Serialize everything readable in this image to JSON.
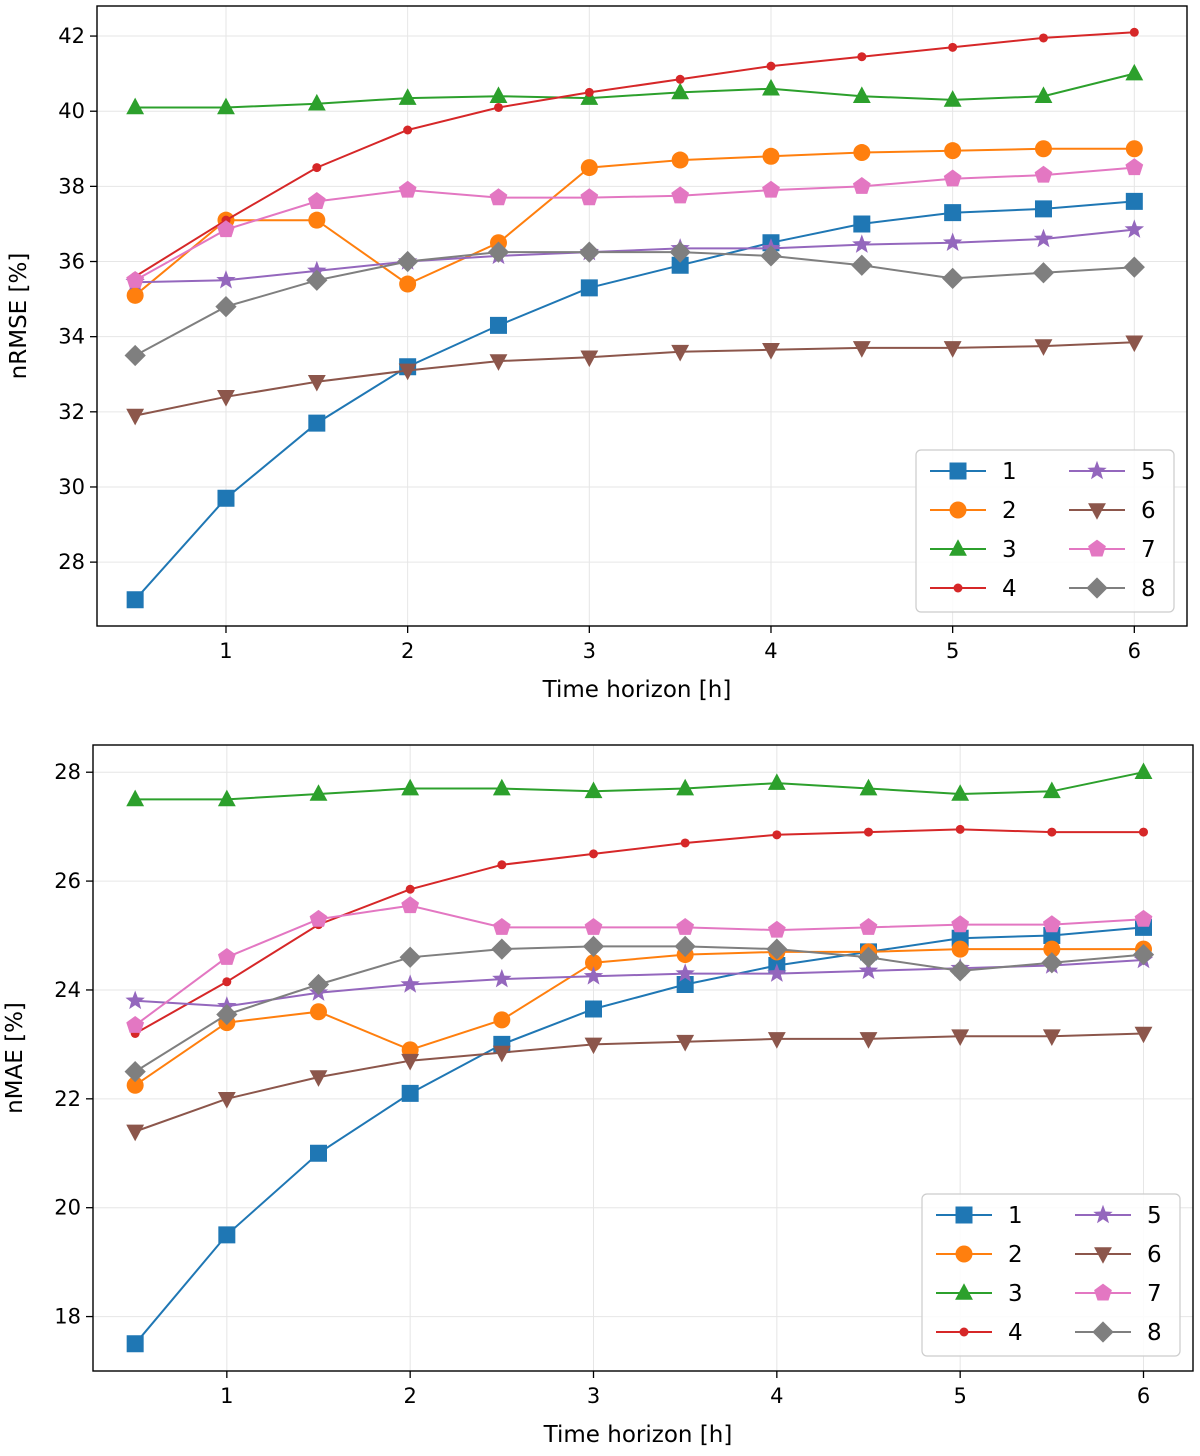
{
  "chart_data": [
    {
      "type": "line",
      "title": "",
      "xlabel": "Time horizon [h]",
      "ylabel": "nRMSE [%]",
      "xlim": [
        0.29,
        6.29
      ],
      "ylim": [
        26.3,
        42.8
      ],
      "xticks": [
        1,
        2,
        3,
        4,
        5,
        6
      ],
      "xtick_labels": [
        "1",
        "2",
        "3",
        "4",
        "5",
        "6"
      ],
      "yticks": [
        28,
        30,
        32,
        34,
        36,
        38,
        40,
        42
      ],
      "ytick_labels": [
        "28",
        "30",
        "32",
        "34",
        "36",
        "38",
        "40",
        "42"
      ],
      "grid": true,
      "legend_position": "lower-right",
      "legend_columns": 2,
      "x": [
        0.5,
        1,
        1.5,
        2,
        2.5,
        3,
        3.5,
        4,
        4.5,
        5,
        5.5,
        6
      ],
      "series": [
        {
          "name": "1",
          "color": "#1f77b4",
          "marker": "square",
          "values": [
            27.0,
            29.7,
            31.7,
            33.2,
            34.3,
            35.3,
            35.9,
            36.5,
            37.0,
            37.3,
            37.4,
            37.6
          ]
        },
        {
          "name": "2",
          "color": "#ff7f0e",
          "marker": "circle",
          "values": [
            35.1,
            37.1,
            37.1,
            35.4,
            36.5,
            38.5,
            38.7,
            38.8,
            38.9,
            38.95,
            39.0,
            39.0
          ]
        },
        {
          "name": "3",
          "color": "#2ca02c",
          "marker": "triangle-up",
          "values": [
            40.1,
            40.1,
            40.2,
            40.35,
            40.4,
            40.35,
            40.5,
            40.6,
            40.4,
            40.3,
            40.4,
            41.0
          ]
        },
        {
          "name": "4",
          "color": "#d62728",
          "marker": "dot",
          "values": [
            35.6,
            37.1,
            38.5,
            39.5,
            40.1,
            40.5,
            40.85,
            41.2,
            41.45,
            41.7,
            41.95,
            42.1
          ]
        },
        {
          "name": "5",
          "color": "#9467bd",
          "marker": "star",
          "values": [
            35.45,
            35.5,
            35.75,
            36.0,
            36.15,
            36.25,
            36.35,
            36.35,
            36.45,
            36.5,
            36.6,
            36.85
          ]
        },
        {
          "name": "6",
          "color": "#8c564b",
          "marker": "triangle-down",
          "values": [
            31.9,
            32.4,
            32.8,
            33.1,
            33.35,
            33.45,
            33.6,
            33.65,
            33.7,
            33.7,
            33.75,
            33.85
          ]
        },
        {
          "name": "7",
          "color": "#e377c2",
          "marker": "pentagon",
          "values": [
            35.5,
            36.85,
            37.6,
            37.9,
            37.7,
            37.7,
            37.75,
            37.9,
            38.0,
            38.2,
            38.3,
            38.5
          ]
        },
        {
          "name": "8",
          "color": "#7f7f7f",
          "marker": "diamond",
          "values": [
            33.5,
            34.8,
            35.5,
            36.0,
            36.25,
            36.25,
            36.25,
            36.15,
            35.9,
            35.55,
            35.7,
            35.85
          ]
        }
      ]
    },
    {
      "type": "line",
      "title": "",
      "xlabel": "Time horizon [h]",
      "ylabel": "nMAE [%]",
      "xlim": [
        0.27,
        6.27
      ],
      "ylim": [
        17.0,
        28.5
      ],
      "xticks": [
        1,
        2,
        3,
        4,
        5,
        6
      ],
      "xtick_labels": [
        "1",
        "2",
        "3",
        "4",
        "5",
        "6"
      ],
      "yticks": [
        18,
        20,
        22,
        24,
        26,
        28
      ],
      "ytick_labels": [
        "18",
        "20",
        "22",
        "24",
        "26",
        "28"
      ],
      "grid": true,
      "legend_position": "lower-right",
      "legend_columns": 2,
      "x": [
        0.5,
        1,
        1.5,
        2,
        2.5,
        3,
        3.5,
        4,
        4.5,
        5,
        5.5,
        6
      ],
      "series": [
        {
          "name": "1",
          "color": "#1f77b4",
          "marker": "square",
          "values": [
            17.5,
            19.5,
            21.0,
            22.1,
            23.0,
            23.65,
            24.1,
            24.45,
            24.7,
            24.95,
            25.0,
            25.15
          ]
        },
        {
          "name": "2",
          "color": "#ff7f0e",
          "marker": "circle",
          "values": [
            22.25,
            23.4,
            23.6,
            22.9,
            23.45,
            24.5,
            24.65,
            24.7,
            24.7,
            24.75,
            24.75,
            24.75
          ]
        },
        {
          "name": "3",
          "color": "#2ca02c",
          "marker": "triangle-up",
          "values": [
            27.5,
            27.5,
            27.6,
            27.7,
            27.7,
            27.65,
            27.7,
            27.8,
            27.7,
            27.6,
            27.65,
            28.0
          ]
        },
        {
          "name": "4",
          "color": "#d62728",
          "marker": "dot",
          "values": [
            23.2,
            24.15,
            25.2,
            25.85,
            26.3,
            26.5,
            26.7,
            26.85,
            26.9,
            26.95,
            26.9,
            26.9
          ]
        },
        {
          "name": "5",
          "color": "#9467bd",
          "marker": "star",
          "values": [
            23.8,
            23.7,
            23.95,
            24.1,
            24.2,
            24.25,
            24.3,
            24.3,
            24.35,
            24.4,
            24.45,
            24.55
          ]
        },
        {
          "name": "6",
          "color": "#8c564b",
          "marker": "triangle-down",
          "values": [
            21.4,
            22.0,
            22.4,
            22.7,
            22.85,
            23.0,
            23.05,
            23.1,
            23.1,
            23.15,
            23.15,
            23.2
          ]
        },
        {
          "name": "7",
          "color": "#e377c2",
          "marker": "pentagon",
          "values": [
            23.35,
            24.6,
            25.3,
            25.55,
            25.15,
            25.15,
            25.15,
            25.1,
            25.15,
            25.2,
            25.2,
            25.3
          ]
        },
        {
          "name": "8",
          "color": "#7f7f7f",
          "marker": "diamond",
          "values": [
            22.5,
            23.55,
            24.1,
            24.6,
            24.75,
            24.8,
            24.8,
            24.75,
            24.6,
            24.35,
            24.5,
            24.65
          ]
        }
      ]
    }
  ]
}
